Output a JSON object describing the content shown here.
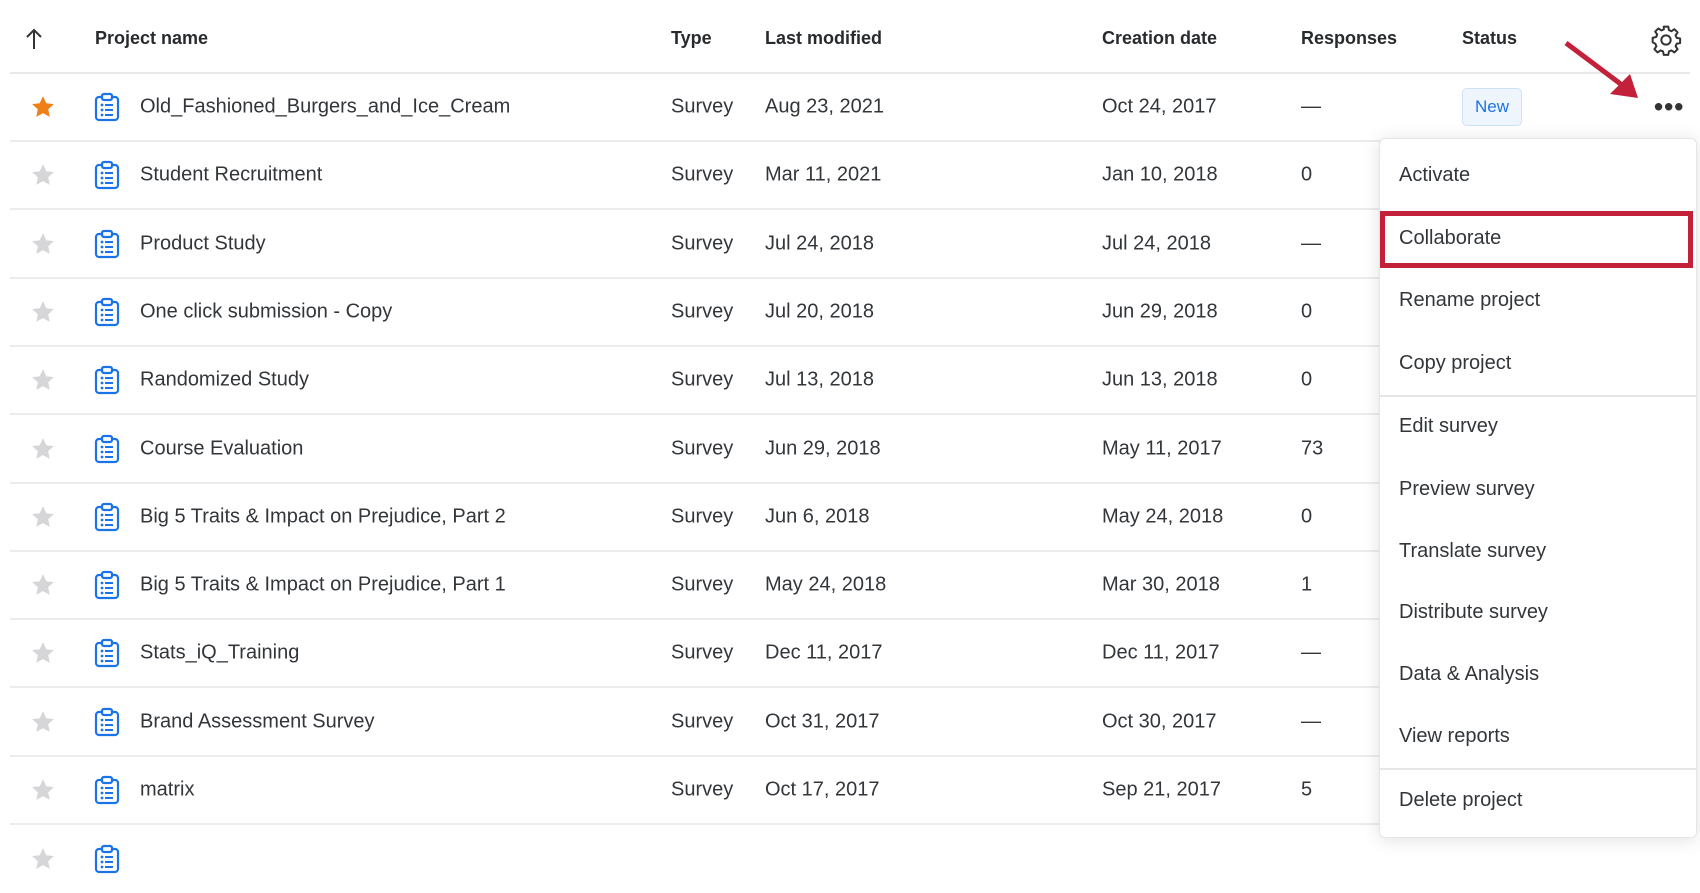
{
  "header": {
    "sort_icon": "arrow-up-icon",
    "project_name": "Project name",
    "type": "Type",
    "last_modified": "Last modified",
    "creation_date": "Creation date",
    "responses": "Responses",
    "status": "Status",
    "settings_icon": "gear-icon"
  },
  "rows": [
    {
      "name": "Old_Fashioned_Burgers_and_Ice_Cream",
      "type": "Survey",
      "last_modified": "Aug 23, 2021",
      "creation_date": "Oct 24, 2017",
      "responses": "—",
      "status": "New",
      "starred": true
    },
    {
      "name": "Student Recruitment",
      "type": "Survey",
      "last_modified": "Mar 11, 2021",
      "creation_date": "Jan 10, 2018",
      "responses": "0"
    },
    {
      "name": "Product Study",
      "type": "Survey",
      "last_modified": "Jul 24, 2018",
      "creation_date": "Jul 24, 2018",
      "responses": "—"
    },
    {
      "name": "One click submission - Copy",
      "type": "Survey",
      "last_modified": "Jul 20, 2018",
      "creation_date": "Jun 29, 2018",
      "responses": "0"
    },
    {
      "name": "Randomized Study",
      "type": "Survey",
      "last_modified": "Jul 13, 2018",
      "creation_date": "Jun 13, 2018",
      "responses": "0"
    },
    {
      "name": "Course Evaluation",
      "type": "Survey",
      "last_modified": "Jun 29, 2018",
      "creation_date": "May 11, 2017",
      "responses": "73"
    },
    {
      "name": "Big 5 Traits & Impact on Prejudice, Part 2",
      "type": "Survey",
      "last_modified": "Jun 6, 2018",
      "creation_date": "May 24, 2018",
      "responses": "0"
    },
    {
      "name": "Big 5 Traits & Impact on Prejudice, Part 1",
      "type": "Survey",
      "last_modified": "May 24, 2018",
      "creation_date": "Mar 30, 2018",
      "responses": "1"
    },
    {
      "name": "Stats_iQ_Training",
      "type": "Survey",
      "last_modified": "Dec 11, 2017",
      "creation_date": "Dec 11, 2017",
      "responses": "—"
    },
    {
      "name": "Brand Assessment Survey",
      "type": "Survey",
      "last_modified": "Oct 31, 2017",
      "creation_date": "Oct 30, 2017",
      "responses": "—"
    },
    {
      "name": "matrix",
      "type": "Survey",
      "last_modified": "Oct 17, 2017",
      "creation_date": "Sep 21, 2017",
      "responses": "5"
    }
  ],
  "menu": {
    "items": [
      "Activate",
      "Collaborate",
      "Rename project",
      "Copy project",
      "Edit survey",
      "Preview survey",
      "Translate survey",
      "Distribute survey",
      "Data & Analysis",
      "View reports",
      "Delete project"
    ],
    "highlighted": "Collaborate"
  },
  "colors": {
    "star_active": "#f07f17",
    "star_inactive": "#d6d6d8",
    "icon_blue": "#1a73e8",
    "highlight_red": "#c3203a"
  }
}
